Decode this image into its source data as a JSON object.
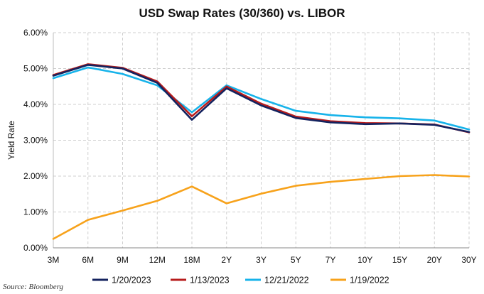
{
  "chart_data": {
    "type": "line",
    "title": "USD Swap Rates (30/360) vs. LIBOR",
    "xlabel": "",
    "ylabel": "Yield Rate",
    "categories": [
      "3M",
      "6M",
      "9M",
      "12M",
      "18M",
      "2Y",
      "3Y",
      "5Y",
      "7Y",
      "10Y",
      "15Y",
      "20Y",
      "30Y"
    ],
    "ylim": [
      0,
      6
    ],
    "yticks": [
      "0.00%",
      "1.00%",
      "2.00%",
      "3.00%",
      "4.00%",
      "5.00%",
      "6.00%"
    ],
    "grid": true,
    "legend_position": "bottom",
    "series": [
      {
        "name": "1/20/2023",
        "color": "#14235f",
        "values": [
          4.8,
          5.1,
          5.0,
          4.6,
          3.57,
          4.45,
          3.97,
          3.62,
          3.5,
          3.45,
          3.47,
          3.43,
          3.23
        ]
      },
      {
        "name": "1/13/2023",
        "color": "#b71c1c",
        "values": [
          4.82,
          5.12,
          5.02,
          4.64,
          3.67,
          4.5,
          4.02,
          3.66,
          3.53,
          3.48,
          3.47,
          3.44,
          3.22
        ]
      },
      {
        "name": "12/21/2022",
        "color": "#17b3ea",
        "values": [
          4.73,
          5.03,
          4.85,
          4.53,
          3.78,
          4.53,
          4.15,
          3.82,
          3.7,
          3.64,
          3.61,
          3.55,
          3.3
        ]
      },
      {
        "name": "1/19/2022",
        "color": "#f7a21b",
        "values": [
          0.25,
          0.78,
          1.04,
          1.31,
          1.71,
          1.24,
          1.51,
          1.73,
          1.84,
          1.92,
          2.0,
          2.03,
          1.99
        ]
      }
    ]
  },
  "source_note": "Source: Bloomberg"
}
